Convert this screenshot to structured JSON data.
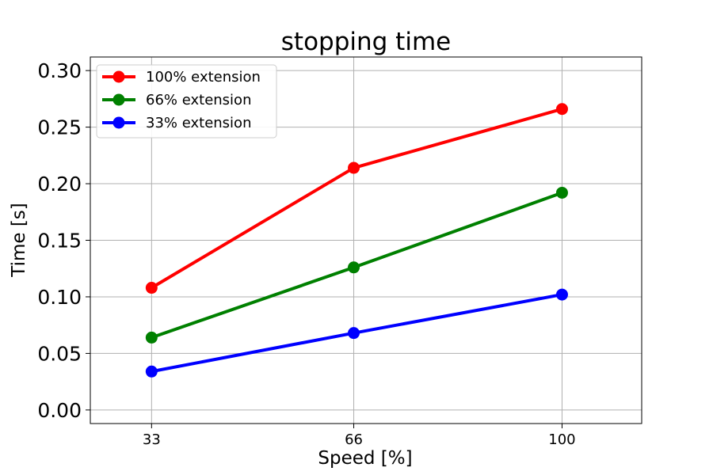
{
  "chart_data": {
    "type": "line",
    "title": "stopping time",
    "xlabel": "Speed [%]",
    "ylabel": "Time [s]",
    "x": [
      33,
      66,
      100
    ],
    "x_tick_labels": [
      "33",
      "66",
      "100"
    ],
    "y_tick_labels": [
      "0.00",
      "0.05",
      "0.10",
      "0.15",
      "0.20",
      "0.25",
      "0.30"
    ],
    "y_ticks": [
      0,
      0.05,
      0.1,
      0.15,
      0.2,
      0.25,
      0.3
    ],
    "xlim": [
      23,
      113
    ],
    "ylim": [
      -0.012,
      0.312
    ],
    "grid": true,
    "legend_position": "top-left",
    "series": [
      {
        "name": "100% extension",
        "color": "#ff0000",
        "values": [
          0.108,
          0.214,
          0.266
        ]
      },
      {
        "name": "66% extension",
        "color": "#008000",
        "values": [
          0.064,
          0.126,
          0.192
        ]
      },
      {
        "name": "33% extension",
        "color": "#0000ff",
        "values": [
          0.034,
          0.068,
          0.102
        ]
      }
    ]
  }
}
